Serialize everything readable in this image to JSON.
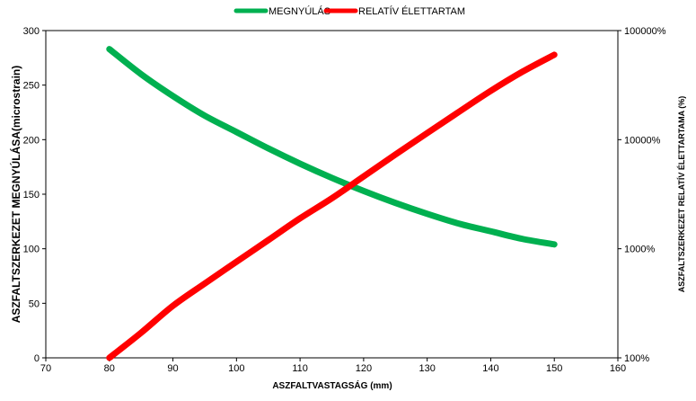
{
  "chart_data": {
    "type": "line",
    "xlabel": "ASZFALTVASTAGSÁG (mm)",
    "ylabel_left": "ASZFALTSZERKEZET MEGNYÚLÁSA(microstrain)",
    "ylabel_right": "ASZFALTSZERKEZET RELATÍV ÉLETTARTAMA (%)",
    "xlim": [
      70,
      160
    ],
    "xticks": [
      "70",
      "80",
      "90",
      "100",
      "110",
      "120",
      "130",
      "140",
      "150",
      "160"
    ],
    "ylim_left": [
      0,
      300
    ],
    "yticks_left": [
      "0",
      "50",
      "100",
      "150",
      "200",
      "250",
      "300"
    ],
    "ylim_right": [
      100,
      100000
    ],
    "yscale_right": "log",
    "yticks_right": [
      "100%",
      "1000%",
      "10000%",
      "100000%"
    ],
    "grid": false,
    "legend_position": "top-center",
    "series": [
      {
        "name": "MEGNYÚLÁS",
        "axis": "left",
        "color": "#00b050",
        "x": [
          80,
          85,
          90,
          95,
          100,
          105,
          110,
          115,
          120,
          125,
          130,
          135,
          140,
          145,
          150
        ],
        "y": [
          283,
          260,
          240,
          222,
          207,
          192,
          178,
          165,
          153,
          142,
          132,
          123,
          116,
          109,
          104
        ]
      },
      {
        "name": "RELATÍV ÉLETTARTAM",
        "axis": "right",
        "color": "#ff0000",
        "x": [
          80,
          85,
          90,
          95,
          100,
          105,
          110,
          115,
          120,
          125,
          130,
          135,
          140,
          145,
          150
        ],
        "y": [
          100,
          170,
          300,
          480,
          760,
          1200,
          1900,
          2900,
          4600,
          7300,
          11500,
          18000,
          28000,
          42000,
          60000
        ]
      }
    ]
  }
}
